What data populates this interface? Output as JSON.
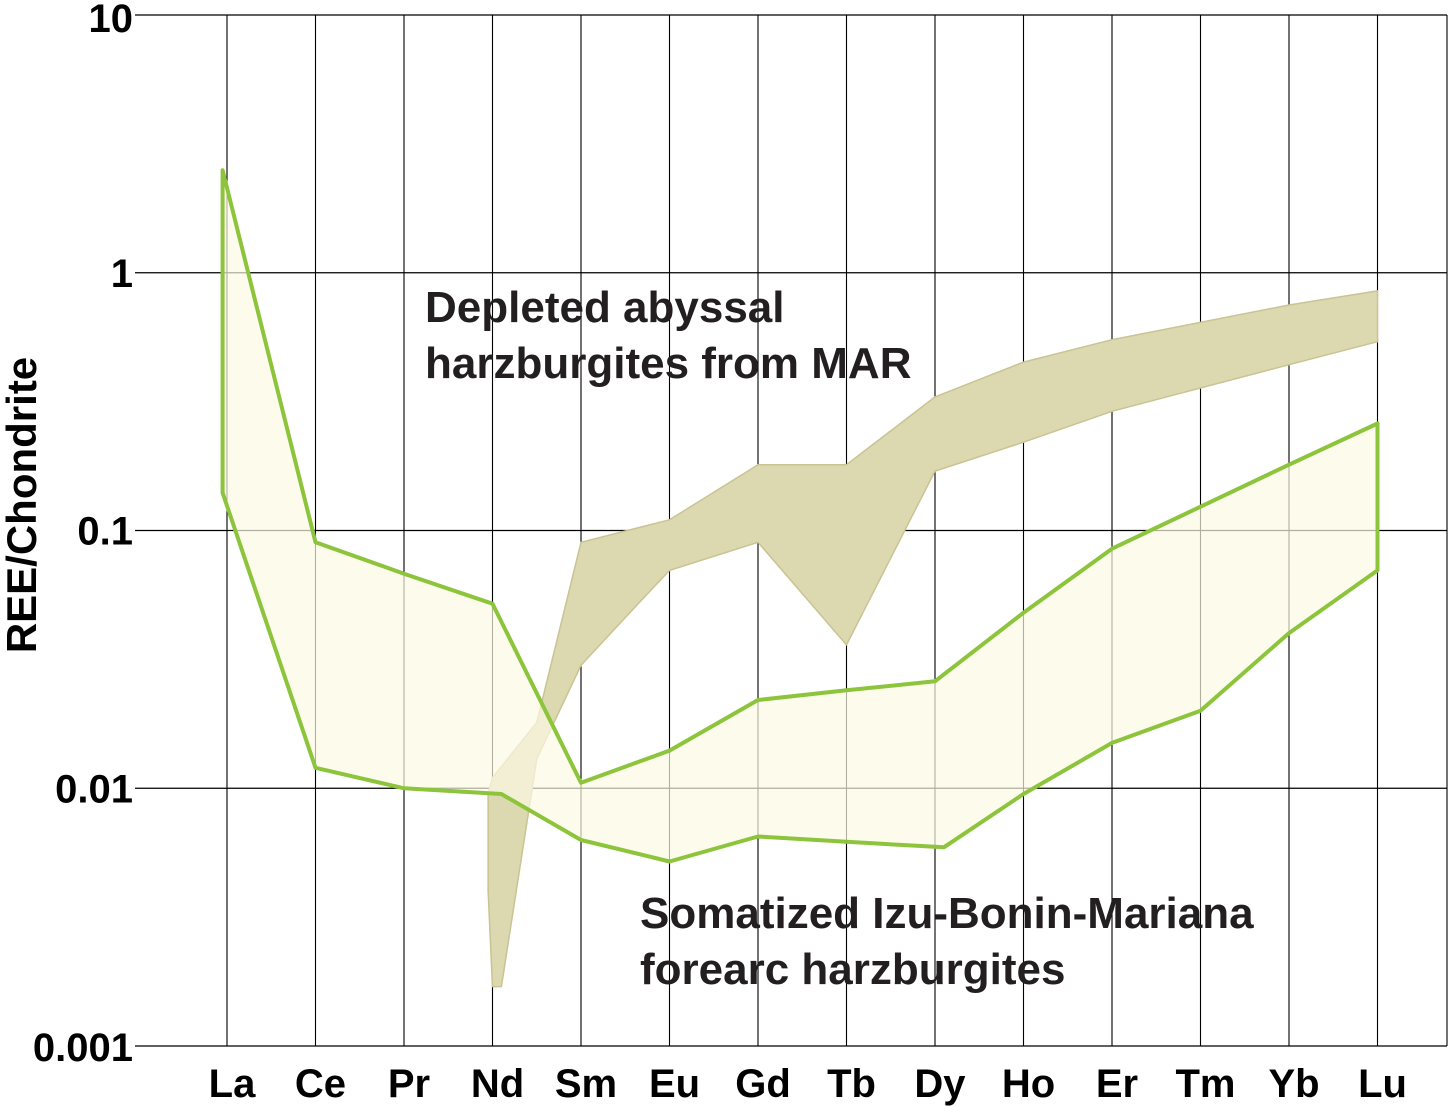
{
  "chart_data": {
    "type": "area",
    "ylabel": "REE/Chondrite",
    "xlabel": "",
    "yscale": "log",
    "ylim": [
      0.001,
      10
    ],
    "grid": true,
    "categories": [
      "La",
      "Ce",
      "Pr",
      "Nd",
      "Sm",
      "Eu",
      "Gd",
      "Tb",
      "Dy",
      "Ho",
      "Er",
      "Tm",
      "Yb",
      "Lu"
    ],
    "y_ticks": [
      "10",
      "1",
      "0.1",
      "0.01",
      "0.001"
    ],
    "y_tick_values": [
      10,
      1,
      0.1,
      0.01,
      0.001
    ],
    "annotations": [
      [
        "Depleted abyssal",
        "harzburgites from MAR"
      ],
      [
        "Somatized Izu-Bonin-Mariana",
        "forearc harzburgites"
      ]
    ],
    "bands": [
      {
        "color_fill": "#dcd8af",
        "color_edge": "#c9c493",
        "upper": [
          [
            2.95,
            0.0095
          ],
          [
            3.0,
            0.011
          ],
          [
            3.5,
            0.018
          ],
          [
            4.0,
            0.09
          ],
          [
            5.0,
            0.11
          ],
          [
            6.0,
            0.18
          ],
          [
            7.0,
            0.18
          ],
          [
            8.0,
            0.33
          ],
          [
            9.0,
            0.45
          ],
          [
            10.0,
            0.55
          ],
          [
            12.0,
            0.75
          ],
          [
            13.0,
            0.85
          ]
        ],
        "lower": [
          [
            13.0,
            0.54
          ],
          [
            12.0,
            0.44
          ],
          [
            10.0,
            0.29
          ],
          [
            9.0,
            0.22
          ],
          [
            8.0,
            0.17
          ],
          [
            7.0,
            0.036
          ],
          [
            6.0,
            0.09
          ],
          [
            5.0,
            0.07
          ],
          [
            4.6,
            0.05
          ],
          [
            4.0,
            0.03
          ],
          [
            3.5,
            0.013
          ],
          [
            3.1,
            0.0017
          ],
          [
            3.0,
            0.0017
          ],
          [
            2.95,
            0.004
          ]
        ]
      },
      {
        "color_fill": "#fcf9e4",
        "color_edge": "#8cc43c",
        "upper": [
          [
            -0.05,
            2.5
          ],
          [
            1.0,
            0.09
          ],
          [
            2.0,
            0.068
          ],
          [
            3.0,
            0.052
          ],
          [
            4.0,
            0.0105
          ],
          [
            5.0,
            0.014
          ],
          [
            6.0,
            0.022
          ],
          [
            7.0,
            0.024
          ],
          [
            8.0,
            0.026
          ],
          [
            9.0,
            0.048
          ],
          [
            10.0,
            0.085
          ],
          [
            12.0,
            0.18
          ],
          [
            13.0,
            0.26
          ]
        ],
        "lower": [
          [
            13.0,
            0.07
          ],
          [
            12.0,
            0.04
          ],
          [
            11.0,
            0.02
          ],
          [
            10.0,
            0.015
          ],
          [
            9.0,
            0.0095
          ],
          [
            8.1,
            0.0059
          ],
          [
            7.0,
            0.0062
          ],
          [
            6.0,
            0.0065
          ],
          [
            5.0,
            0.0052
          ],
          [
            4.0,
            0.0063
          ],
          [
            3.1,
            0.0095
          ],
          [
            2.0,
            0.01
          ],
          [
            1.0,
            0.012
          ],
          [
            -0.05,
            0.14
          ]
        ]
      }
    ]
  }
}
